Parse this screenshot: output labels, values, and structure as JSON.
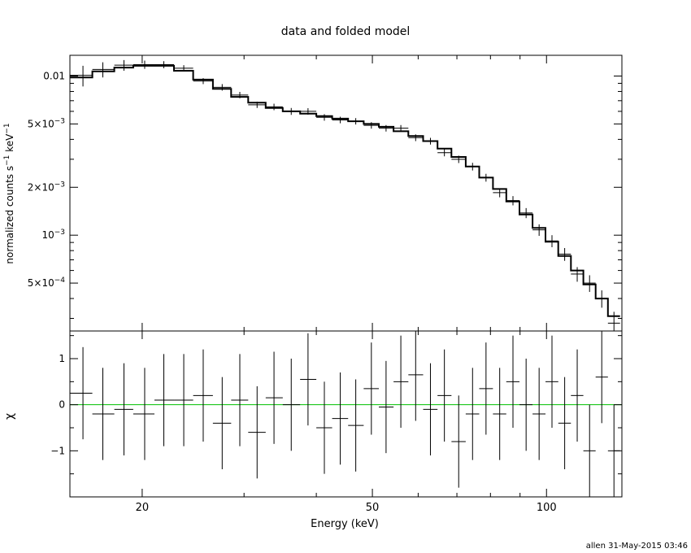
{
  "title": "data and folded model",
  "footer": "allen 31-May-2015 03:46",
  "colors": {
    "zero_line": "#00c000",
    "ink": "#000000",
    "bg": "#ffffff"
  },
  "chart_data": [
    {
      "type": "line",
      "panel": "spectrum",
      "xscale": "log",
      "yscale": "log",
      "xlim": [
        15,
        135
      ],
      "ylim": [
        0.00025,
        0.0135
      ],
      "ylabel": {
        "base": "normalized counts s",
        "exp1": "−1",
        "mid": " keV",
        "exp2": "−1"
      },
      "yticks_labeled": [
        {
          "value": 0.01,
          "text": "0.01"
        },
        {
          "value": 0.005,
          "mant": "5×10",
          "exp": "−3"
        },
        {
          "value": 0.002,
          "mant": "2×10",
          "exp": "−3"
        },
        {
          "value": 0.001,
          "mant": "10",
          "exp": "−3"
        },
        {
          "value": 0.0005,
          "mant": "5×10",
          "exp": "−4"
        }
      ],
      "yticks_minor": [
        0.0003,
        0.0004,
        0.0006,
        0.0007,
        0.0008,
        0.0009,
        0.003,
        0.004,
        0.006,
        0.007,
        0.008,
        0.009
      ],
      "grid": false,
      "model_edges": [
        15.0,
        16.4,
        17.9,
        19.3,
        21.0,
        22.7,
        24.5,
        26.5,
        28.5,
        30.5,
        32.7,
        35.0,
        37.5,
        40.0,
        42.6,
        45.4,
        48.3,
        51.3,
        54.4,
        57.7,
        61.2,
        64.8,
        68.5,
        72.5,
        76.5,
        80.8,
        85.2,
        89.8,
        94.6,
        99.6,
        104.8,
        110.2,
        115.8,
        121.6,
        127.7,
        134.0
      ],
      "model_values": [
        0.0098,
        0.0107,
        0.0113,
        0.0116,
        0.0116,
        0.0108,
        0.0095,
        0.0083,
        0.0074,
        0.0068,
        0.0063,
        0.006,
        0.0058,
        0.0056,
        0.0054,
        0.0052,
        0.005,
        0.0048,
        0.0045,
        0.0042,
        0.0039,
        0.0035,
        0.0031,
        0.0027,
        0.0023,
        0.00195,
        0.00163,
        0.00135,
        0.00111,
        0.00091,
        0.00074,
        0.0006,
        0.00049,
        0.0004,
        0.00031
      ],
      "points": [
        {
          "x": 15.8,
          "y": 0.0101,
          "xlo": 15.0,
          "xhi": 16.4,
          "err": 0.0015
        },
        {
          "x": 17.1,
          "y": 0.011,
          "xlo": 16.4,
          "xhi": 17.9,
          "err": 0.0012
        },
        {
          "x": 18.6,
          "y": 0.0117,
          "xlo": 17.9,
          "xhi": 19.3,
          "err": 0.0009
        },
        {
          "x": 20.2,
          "y": 0.0118,
          "xlo": 19.3,
          "xhi": 21.0,
          "err": 0.0007
        },
        {
          "x": 21.8,
          "y": 0.0118,
          "xlo": 21.0,
          "xhi": 22.7,
          "err": 0.0006
        },
        {
          "x": 23.6,
          "y": 0.0112,
          "xlo": 22.7,
          "xhi": 24.5,
          "err": 0.0005
        },
        {
          "x": 25.5,
          "y": 0.0093,
          "xlo": 24.5,
          "xhi": 26.5,
          "err": 0.0004
        },
        {
          "x": 27.5,
          "y": 0.0085,
          "xlo": 26.5,
          "xhi": 28.5,
          "err": 0.0004
        },
        {
          "x": 29.5,
          "y": 0.0076,
          "xlo": 28.5,
          "xhi": 30.5,
          "err": 0.00035
        },
        {
          "x": 31.6,
          "y": 0.0066,
          "xlo": 30.5,
          "xhi": 32.7,
          "err": 0.0003
        },
        {
          "x": 33.8,
          "y": 0.0064,
          "xlo": 32.7,
          "xhi": 35.0,
          "err": 0.0003
        },
        {
          "x": 36.2,
          "y": 0.006,
          "xlo": 35.0,
          "xhi": 37.5,
          "err": 0.0003
        },
        {
          "x": 38.7,
          "y": 0.006,
          "xlo": 37.5,
          "xhi": 40.0,
          "err": 0.00028
        },
        {
          "x": 41.3,
          "y": 0.0055,
          "xlo": 40.0,
          "xhi": 42.6,
          "err": 0.00026
        },
        {
          "x": 44.0,
          "y": 0.0053,
          "xlo": 42.6,
          "xhi": 45.4,
          "err": 0.00025
        },
        {
          "x": 46.8,
          "y": 0.0052,
          "xlo": 45.4,
          "xhi": 48.3,
          "err": 0.00024
        },
        {
          "x": 49.8,
          "y": 0.0049,
          "xlo": 48.3,
          "xhi": 51.3,
          "err": 0.00023
        },
        {
          "x": 52.8,
          "y": 0.0047,
          "xlo": 51.3,
          "xhi": 54.4,
          "err": 0.00022
        },
        {
          "x": 56.0,
          "y": 0.0047,
          "xlo": 54.4,
          "xhi": 57.7,
          "err": 0.00022
        },
        {
          "x": 59.4,
          "y": 0.0041,
          "xlo": 57.7,
          "xhi": 61.2,
          "err": 0.0002
        },
        {
          "x": 63.0,
          "y": 0.0039,
          "xlo": 61.2,
          "xhi": 64.8,
          "err": 0.00019
        },
        {
          "x": 66.6,
          "y": 0.0033,
          "xlo": 64.8,
          "xhi": 68.5,
          "err": 0.00017
        },
        {
          "x": 70.5,
          "y": 0.003,
          "xlo": 68.5,
          "xhi": 72.5,
          "err": 0.00016
        },
        {
          "x": 74.5,
          "y": 0.0027,
          "xlo": 72.5,
          "xhi": 76.5,
          "err": 0.00015
        },
        {
          "x": 78.6,
          "y": 0.0023,
          "xlo": 76.5,
          "xhi": 80.8,
          "err": 0.00013
        },
        {
          "x": 83.0,
          "y": 0.00185,
          "xlo": 80.8,
          "xhi": 85.2,
          "err": 0.00012
        },
        {
          "x": 87.5,
          "y": 0.00165,
          "xlo": 85.2,
          "xhi": 89.8,
          "err": 0.00011
        },
        {
          "x": 92.2,
          "y": 0.00138,
          "xlo": 89.8,
          "xhi": 94.6,
          "err": 0.0001
        },
        {
          "x": 97.1,
          "y": 0.00108,
          "xlo": 94.6,
          "xhi": 99.6,
          "err": 9e-05
        },
        {
          "x": 102.2,
          "y": 0.00092,
          "xlo": 99.6,
          "xhi": 104.8,
          "err": 8e-05
        },
        {
          "x": 107.5,
          "y": 0.00076,
          "xlo": 104.8,
          "xhi": 110.2,
          "err": 7e-05
        },
        {
          "x": 113.0,
          "y": 0.00057,
          "xlo": 110.2,
          "xhi": 115.8,
          "err": 6e-05
        },
        {
          "x": 118.7,
          "y": 0.0005,
          "xlo": 115.8,
          "xhi": 121.6,
          "err": 6e-05
        },
        {
          "x": 124.6,
          "y": 0.0004,
          "xlo": 121.6,
          "xhi": 127.7,
          "err": 5e-05
        },
        {
          "x": 130.8,
          "y": 0.00028,
          "xlo": 127.7,
          "xhi": 134.0,
          "err": 5e-05
        }
      ]
    },
    {
      "type": "scatter",
      "panel": "residuals",
      "xscale": "log",
      "xlim": [
        15,
        135
      ],
      "ylim": [
        -2,
        1.6
      ],
      "ylabel": "χ",
      "xlabel": "Energy (keV)",
      "xticks": [
        {
          "value": 20,
          "text": "20"
        },
        {
          "value": 50,
          "text": "50"
        },
        {
          "value": 100,
          "text": "100"
        }
      ],
      "xticks_minor": [
        30,
        40,
        60,
        70,
        80,
        90
      ],
      "yticks": [
        {
          "value": 1,
          "text": "1"
        },
        {
          "value": 0,
          "text": "0"
        },
        {
          "value": -1,
          "text": "−1"
        }
      ],
      "zero_line": 0,
      "points": [
        {
          "x": 15.8,
          "y": 0.25,
          "xlo": 15.0,
          "xhi": 16.4,
          "err": 1.0
        },
        {
          "x": 17.1,
          "y": -0.2,
          "xlo": 16.4,
          "xhi": 17.9,
          "err": 1.0
        },
        {
          "x": 18.6,
          "y": -0.1,
          "xlo": 17.9,
          "xhi": 19.3,
          "err": 1.0
        },
        {
          "x": 20.2,
          "y": -0.2,
          "xlo": 19.3,
          "xhi": 21.0,
          "err": 1.0
        },
        {
          "x": 21.8,
          "y": 0.1,
          "xlo": 21.0,
          "xhi": 22.7,
          "err": 1.0
        },
        {
          "x": 23.6,
          "y": 0.1,
          "xlo": 22.7,
          "xhi": 24.5,
          "err": 1.0
        },
        {
          "x": 25.5,
          "y": 0.2,
          "xlo": 24.5,
          "xhi": 26.5,
          "err": 1.0
        },
        {
          "x": 27.5,
          "y": -0.4,
          "xlo": 26.5,
          "xhi": 28.5,
          "err": 1.0
        },
        {
          "x": 29.5,
          "y": 0.1,
          "xlo": 28.5,
          "xhi": 30.5,
          "err": 1.0
        },
        {
          "x": 31.6,
          "y": -0.6,
          "xlo": 30.5,
          "xhi": 32.7,
          "err": 1.0
        },
        {
          "x": 33.8,
          "y": 0.15,
          "xlo": 32.7,
          "xhi": 35.0,
          "err": 1.0
        },
        {
          "x": 36.2,
          "y": 0.0,
          "xlo": 35.0,
          "xhi": 37.5,
          "err": 1.0
        },
        {
          "x": 38.7,
          "y": 0.55,
          "xlo": 37.5,
          "xhi": 40.0,
          "err": 1.0
        },
        {
          "x": 41.3,
          "y": -0.5,
          "xlo": 40.0,
          "xhi": 42.6,
          "err": 1.0
        },
        {
          "x": 44.0,
          "y": -0.3,
          "xlo": 42.6,
          "xhi": 45.4,
          "err": 1.0
        },
        {
          "x": 46.8,
          "y": -0.45,
          "xlo": 45.4,
          "xhi": 48.3,
          "err": 1.0
        },
        {
          "x": 49.8,
          "y": 0.35,
          "xlo": 48.3,
          "xhi": 51.3,
          "err": 1.0
        },
        {
          "x": 52.8,
          "y": -0.05,
          "xlo": 51.3,
          "xhi": 54.4,
          "err": 1.0
        },
        {
          "x": 56.0,
          "y": 0.5,
          "xlo": 54.4,
          "xhi": 57.7,
          "err": 1.0
        },
        {
          "x": 59.4,
          "y": 0.65,
          "xlo": 57.7,
          "xhi": 61.2,
          "err": 1.0
        },
        {
          "x": 63.0,
          "y": -0.1,
          "xlo": 61.2,
          "xhi": 64.8,
          "err": 1.0
        },
        {
          "x": 66.6,
          "y": 0.2,
          "xlo": 64.8,
          "xhi": 68.5,
          "err": 1.0
        },
        {
          "x": 70.5,
          "y": -0.8,
          "xlo": 68.5,
          "xhi": 72.5,
          "err": 1.0
        },
        {
          "x": 74.5,
          "y": -0.2,
          "xlo": 72.5,
          "xhi": 76.5,
          "err": 1.0
        },
        {
          "x": 78.6,
          "y": 0.35,
          "xlo": 76.5,
          "xhi": 80.8,
          "err": 1.0
        },
        {
          "x": 83.0,
          "y": -0.2,
          "xlo": 80.8,
          "xhi": 85.2,
          "err": 1.0
        },
        {
          "x": 87.5,
          "y": 0.5,
          "xlo": 85.2,
          "xhi": 89.8,
          "err": 1.0
        },
        {
          "x": 92.2,
          "y": 0.0,
          "xlo": 89.8,
          "xhi": 94.6,
          "err": 1.0
        },
        {
          "x": 97.1,
          "y": -0.2,
          "xlo": 94.6,
          "xhi": 99.6,
          "err": 1.0
        },
        {
          "x": 102.2,
          "y": 0.5,
          "xlo": 99.6,
          "xhi": 104.8,
          "err": 1.0
        },
        {
          "x": 107.5,
          "y": -0.4,
          "xlo": 104.8,
          "xhi": 110.2,
          "err": 1.0
        },
        {
          "x": 113.0,
          "y": 0.2,
          "xlo": 110.2,
          "xhi": 115.8,
          "err": 1.0
        },
        {
          "x": 118.7,
          "y": -1.0,
          "xlo": 115.8,
          "xhi": 121.6,
          "err": 1.0
        },
        {
          "x": 124.6,
          "y": 0.6,
          "xlo": 121.6,
          "xhi": 127.7,
          "err": 1.0
        },
        {
          "x": 130.8,
          "y": -1.0,
          "xlo": 127.7,
          "xhi": 134.0,
          "err": 1.0
        }
      ]
    }
  ]
}
